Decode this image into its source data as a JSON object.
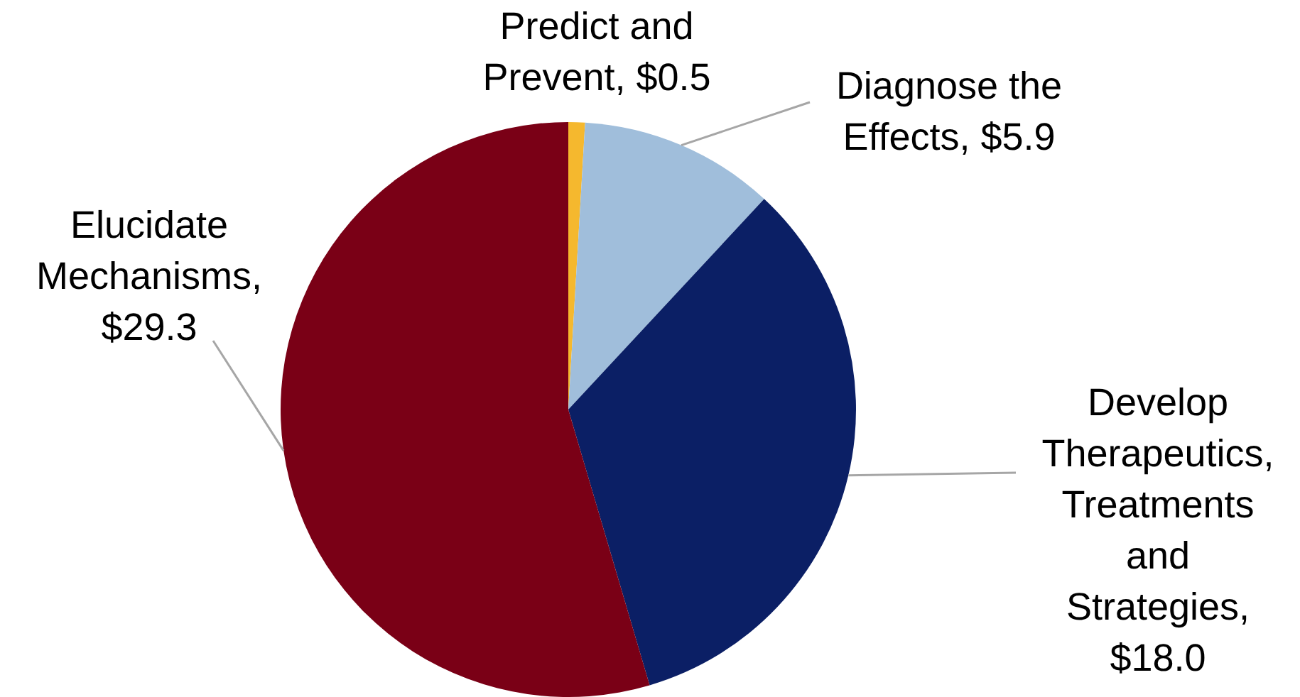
{
  "chart_data": {
    "type": "pie",
    "categories": [
      "Predict and Prevent, $0.5",
      "Diagnose the Effects, $5.9",
      "Develop Therapeutics, Treatments and Strategies, $18.0",
      "Elucidate Mechanisms, $29.3"
    ],
    "values": [
      0.5,
      5.9,
      18.0,
      29.3
    ],
    "colors": [
      "#f5b82e",
      "#a0bedb",
      "#0b1f65",
      "#7a0016"
    ],
    "legend": false
  }
}
